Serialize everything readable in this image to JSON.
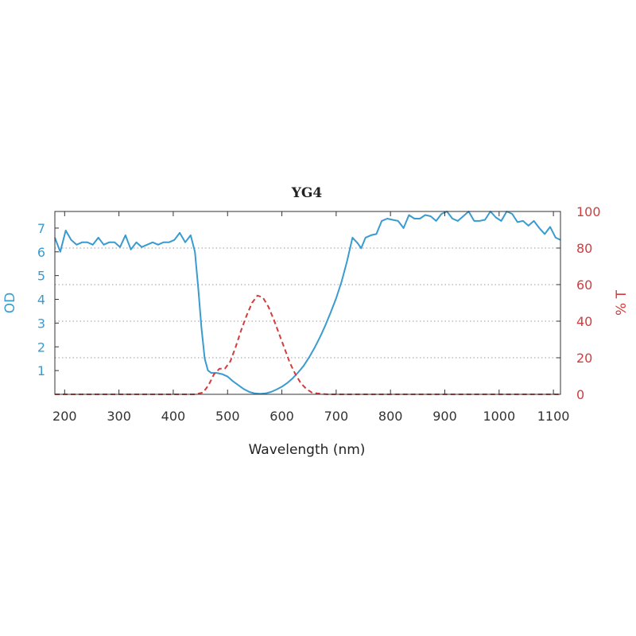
{
  "chart_data": {
    "type": "line",
    "title": "YG4",
    "xlabel": "Wavelength (nm)",
    "ylabel_left": "OD",
    "ylabel_right": "% T",
    "xlim": [
      182,
      1113
    ],
    "ylim_left": [
      0,
      7.7
    ],
    "ylim_right": [
      0,
      100
    ],
    "x_ticks": [
      200,
      300,
      400,
      500,
      600,
      700,
      800,
      900,
      1000,
      1100
    ],
    "y_left_ticks": [
      1,
      2,
      3,
      4,
      5,
      6,
      7
    ],
    "y_right_ticks": [
      0,
      20,
      40,
      60,
      80,
      100
    ],
    "grid": "horizontal dotted",
    "colors": {
      "od": "#3a9bd0",
      "transmission": "#d23c3c",
      "axis": "#333333"
    },
    "series": [
      {
        "name": "OD",
        "axis": "left",
        "style": "solid",
        "x": [
          182,
          192,
          202,
          212,
          222,
          232,
          242,
          252,
          262,
          272,
          282,
          292,
          302,
          312,
          322,
          332,
          342,
          352,
          362,
          372,
          382,
          392,
          402,
          412,
          422,
          432,
          440,
          446,
          452,
          458,
          464,
          470,
          480,
          490,
          500,
          510,
          520,
          530,
          540,
          550,
          560,
          570,
          580,
          590,
          600,
          610,
          620,
          630,
          640,
          650,
          660,
          670,
          680,
          690,
          700,
          710,
          720,
          730,
          740,
          746,
          754,
          764,
          774,
          784,
          794,
          804,
          814,
          824,
          834,
          844,
          854,
          864,
          874,
          884,
          894,
          904,
          914,
          924,
          934,
          944,
          954,
          964,
          974,
          984,
          994,
          1004,
          1014,
          1024,
          1034,
          1044,
          1054,
          1064,
          1074,
          1084,
          1094,
          1104,
          1113
        ],
        "y": [
          6.6,
          6.0,
          6.9,
          6.5,
          6.3,
          6.4,
          6.4,
          6.3,
          6.6,
          6.3,
          6.4,
          6.4,
          6.2,
          6.7,
          6.1,
          6.4,
          6.2,
          6.3,
          6.4,
          6.3,
          6.4,
          6.4,
          6.5,
          6.8,
          6.4,
          6.7,
          6.0,
          4.5,
          2.8,
          1.5,
          1.0,
          0.9,
          0.9,
          0.85,
          0.75,
          0.55,
          0.38,
          0.22,
          0.1,
          0.04,
          0.02,
          0.04,
          0.1,
          0.2,
          0.32,
          0.48,
          0.68,
          0.92,
          1.2,
          1.55,
          1.95,
          2.4,
          2.9,
          3.45,
          4.05,
          4.75,
          5.6,
          6.6,
          6.35,
          6.15,
          6.6,
          6.7,
          6.75,
          7.3,
          7.4,
          7.35,
          7.3,
          7.0,
          7.55,
          7.4,
          7.4,
          7.55,
          7.5,
          7.3,
          7.6,
          7.7,
          7.4,
          7.3,
          7.5,
          7.7,
          7.3,
          7.3,
          7.35,
          7.7,
          7.45,
          7.3,
          7.7,
          7.6,
          7.25,
          7.3,
          7.1,
          7.3,
          7.0,
          6.75,
          7.05,
          6.6,
          6.5
        ]
      },
      {
        "name": "% T",
        "axis": "right",
        "style": "dashed",
        "x": [
          182,
          440,
          455,
          465,
          475,
          485,
          495,
          505,
          515,
          525,
          535,
          545,
          555,
          565,
          575,
          585,
          595,
          605,
          615,
          625,
          635,
          645,
          655,
          665,
          675,
          685,
          695,
          1113
        ],
        "y": [
          0,
          0,
          1,
          5,
          11,
          14,
          14,
          18,
          26,
          35,
          43,
          50,
          54,
          53,
          48,
          41,
          33,
          25,
          17,
          11,
          6,
          3,
          1,
          0.5,
          0.2,
          0,
          0,
          0
        ]
      }
    ]
  }
}
